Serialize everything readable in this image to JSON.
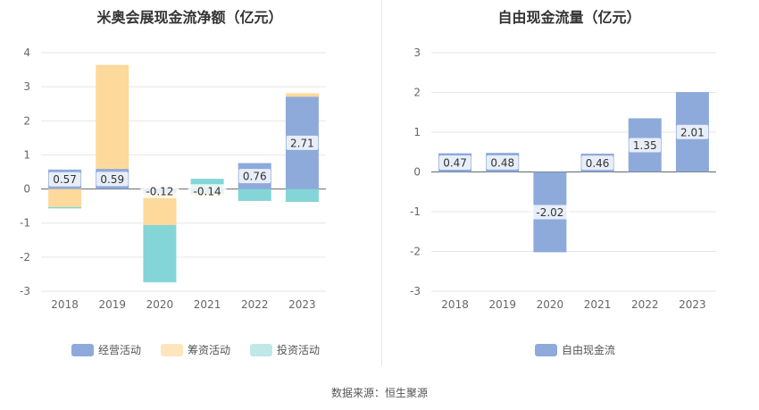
{
  "left_title": "米奥会展现金流净额（亿元）",
  "right_title": "自由现金流量（亿元）",
  "source": "数据来源：恒生聚源",
  "colors": {
    "operating": "#8eaadb",
    "financing": "#fdd99b",
    "investing": "#84d5d7",
    "free_cash_flow": "#8eaadb"
  },
  "chart_data": [
    {
      "type": "bar",
      "stacked": true,
      "title": "米奥会展现金流净额（亿元）",
      "categories": [
        "2018",
        "2019",
        "2020",
        "2021",
        "2022",
        "2023"
      ],
      "ylim": [
        -3,
        4
      ],
      "yticks": [
        -3,
        -2,
        -1,
        0,
        1,
        2,
        3,
        4
      ],
      "grid": true,
      "legend_position": "bottom",
      "series": [
        {
          "name": "经营活动",
          "values": [
            0.57,
            0.59,
            -0.12,
            -0.14,
            0.76,
            2.71
          ],
          "labels": [
            "0.57",
            "0.59",
            "-0.12",
            "-0.14",
            "0.76",
            "2.71"
          ]
        },
        {
          "name": "筹资活动",
          "values": [
            -0.53,
            3.05,
            -0.94,
            -0.06,
            0,
            0.1
          ]
        },
        {
          "name": "投资活动",
          "values": [
            -0.04,
            0,
            -1.68,
            0.3,
            -0.35,
            -0.38
          ]
        }
      ]
    },
    {
      "type": "bar",
      "title": "自由现金流量（亿元）",
      "categories": [
        "2018",
        "2019",
        "2020",
        "2021",
        "2022",
        "2023"
      ],
      "ylim": [
        -3,
        3
      ],
      "yticks": [
        -3,
        -2,
        -1,
        0,
        1,
        2,
        3
      ],
      "grid": true,
      "legend_position": "bottom",
      "series": [
        {
          "name": "自由现金流",
          "values": [
            0.47,
            0.48,
            -2.02,
            0.46,
            1.35,
            2.01
          ],
          "labels": [
            "0.47",
            "0.48",
            "-2.02",
            "0.46",
            "1.35",
            "2.01"
          ]
        }
      ]
    }
  ]
}
